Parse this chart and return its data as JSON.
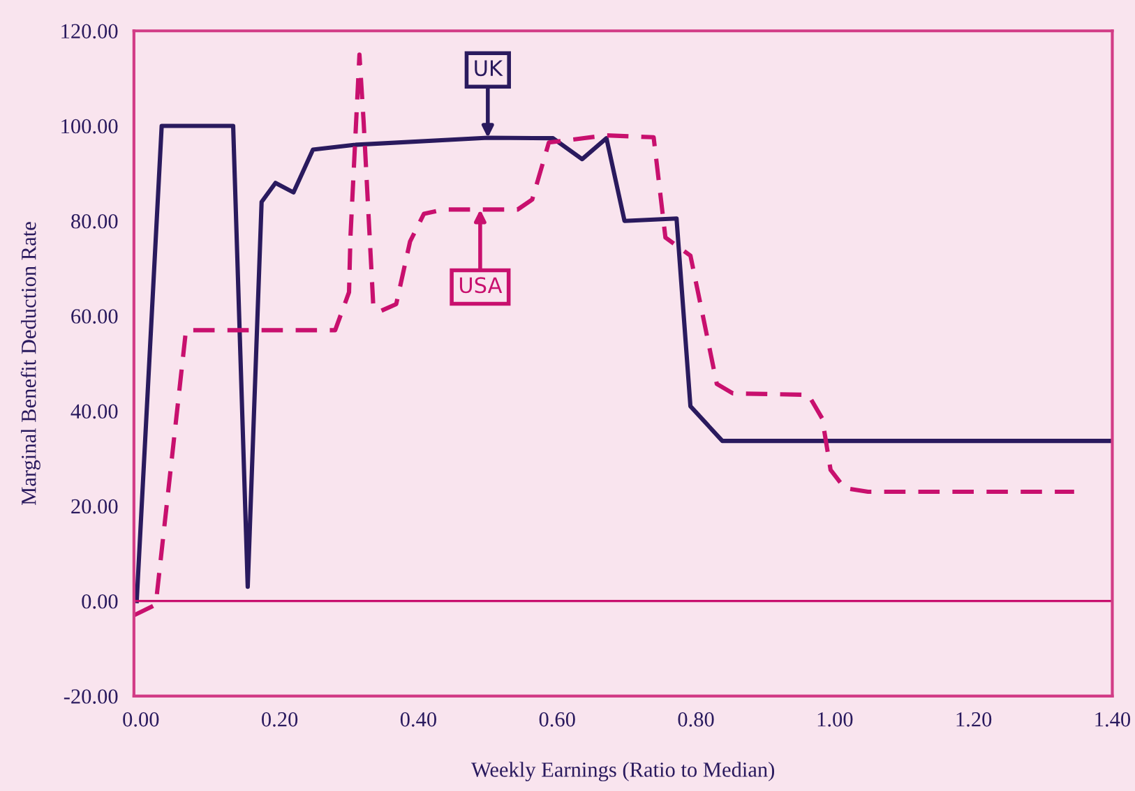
{
  "chart_data": {
    "type": "line",
    "xlabel": "Weekly Earnings (Ratio to Median)",
    "ylabel": "Marginal Benefit Deduction Rate",
    "xlim": [
      -0.01,
      1.4
    ],
    "ylim": [
      -20,
      120
    ],
    "xticks": [
      {
        "value": 0,
        "label": "0.00"
      },
      {
        "value": 0.2,
        "label": "0.20"
      },
      {
        "value": 0.4,
        "label": "0.40"
      },
      {
        "value": 0.6,
        "label": "0.60"
      },
      {
        "value": 0.8,
        "label": "0.80"
      },
      {
        "value": 1.0,
        "label": "1.00"
      },
      {
        "value": 1.2,
        "label": "1.20"
      },
      {
        "value": 1.4,
        "label": "1.40"
      }
    ],
    "yticks": [
      {
        "value": -20,
        "label": "-20.00"
      },
      {
        "value": 0,
        "label": "0.00"
      },
      {
        "value": 20,
        "label": "20.00"
      },
      {
        "value": 40,
        "label": "40.00"
      },
      {
        "value": 60,
        "label": "60.00"
      },
      {
        "value": 80,
        "label": "80.00"
      },
      {
        "value": 100,
        "label": "100.00"
      },
      {
        "value": 120,
        "label": "120.00"
      }
    ],
    "grid": false,
    "legend": false,
    "marker": "none",
    "series": [
      {
        "color": "#2a1a5e",
        "line_style": "solid",
        "x": [
          -0.006,
          0.03,
          0.133,
          0.154,
          0.174,
          0.194,
          0.22,
          0.248,
          0.307,
          0.5,
          0.594,
          0.636,
          0.671,
          0.697,
          0.772,
          0.792,
          0.838,
          1.4
        ],
        "values": [
          0,
          100,
          100,
          3,
          84,
          88,
          86,
          95,
          96,
          97.5,
          97.4,
          93,
          97.4,
          80,
          80.5,
          41,
          33.7,
          33.7
        ]
      },
      {
        "color": "#c8106e",
        "line_style": "dashed",
        "x": [
          -0.01,
          0.018,
          0.022,
          0.065,
          0.28,
          0.3,
          0.302,
          0.315,
          0.321,
          0.335,
          0.345,
          0.368,
          0.388,
          0.408,
          0.436,
          0.543,
          0.564,
          0.588,
          0.67,
          0.739,
          0.756,
          0.792,
          0.81,
          0.83,
          0.853,
          0.962,
          0.982,
          0.994,
          1.014,
          1.048,
          1.345
        ],
        "values": [
          -3,
          -1,
          0,
          57,
          57,
          65,
          76.5,
          115,
          101,
          62,
          61,
          62.5,
          75.7,
          81.5,
          82.4,
          82.4,
          84.5,
          96.5,
          98,
          97.6,
          76.5,
          72.7,
          60,
          45.7,
          43.7,
          43.4,
          38.4,
          27.6,
          23.8,
          23,
          23
        ]
      }
    ],
    "ref_lines": [
      {
        "axis": "y",
        "value": 0,
        "color": "#c8106e"
      }
    ],
    "annotations": [
      {
        "text": "UK",
        "x": 0.5,
        "y": 97.5
      },
      {
        "text": "USA",
        "x": 0.489,
        "y": 82.4
      }
    ]
  }
}
